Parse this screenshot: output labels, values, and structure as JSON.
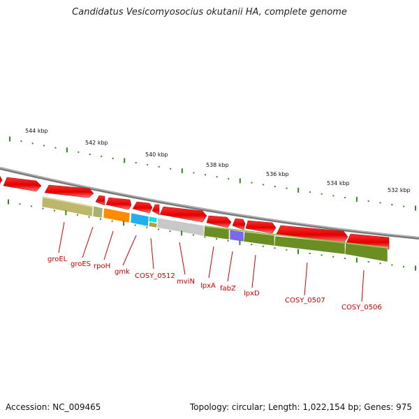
{
  "title": "Candidatus Vesicomyosocius okutanii HA, complete genome",
  "accession": "Accession: NC_009465",
  "summary": "Topology: circular; Length: 1,022,154 bp; Genes: 975",
  "kbp_labels": [
    "544 kbp",
    "542 kbp",
    "540 kbp",
    "538 kbp",
    "536 kbp",
    "534 kbp",
    "532 kbp"
  ],
  "genes": [
    "groEL",
    "groES",
    "rpoH",
    "gmk",
    "COSY_0512",
    "mviN",
    "lpxA",
    "fabZ",
    "lpxD",
    "COSY_0507",
    "COSY_0506"
  ],
  "colors": {
    "backbone": "#8a8a8a",
    "gene_arrow": "#ee0000",
    "ruler_tick": "#2e8b22",
    "gene_label": "#cc0000",
    "cog_olive": "#6b8e23",
    "cog_khaki": "#bdb76b",
    "cog_orange": "#ff8c00",
    "cog_cyan": "#1eb0f0",
    "cog_gray": "#c0c0c0",
    "cog_purple": "#7b68ee"
  }
}
